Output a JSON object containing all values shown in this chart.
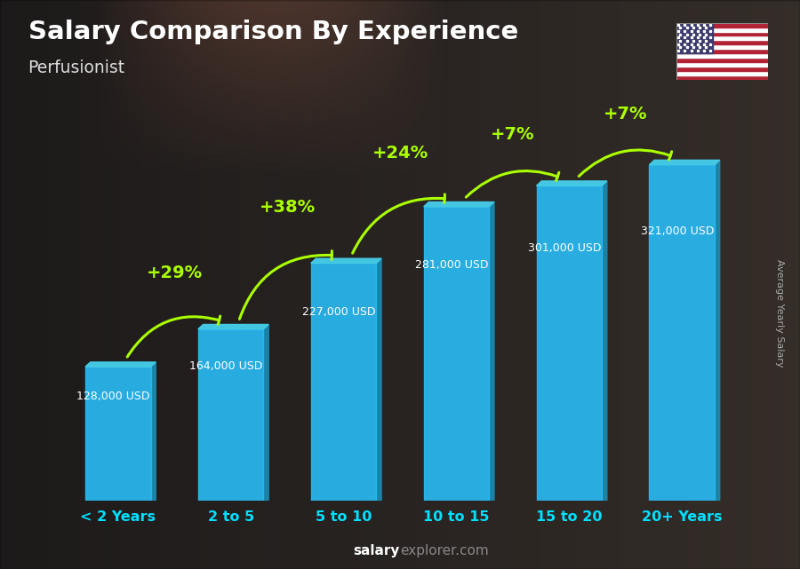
{
  "title": "Salary Comparison By Experience",
  "subtitle": "Perfusionist",
  "ylabel": "Average Yearly Salary",
  "watermark_salary": "salary",
  "watermark_explorer": "explorer.com",
  "categories": [
    "< 2 Years",
    "2 to 5",
    "5 to 10",
    "10 to 15",
    "15 to 20",
    "20+ Years"
  ],
  "values": [
    128000,
    164000,
    227000,
    281000,
    301000,
    321000
  ],
  "labels": [
    "128,000 USD",
    "164,000 USD",
    "227,000 USD",
    "281,000 USD",
    "301,000 USD",
    "321,000 USD"
  ],
  "pct_changes": [
    "+29%",
    "+38%",
    "+24%",
    "+7%",
    "+7%"
  ],
  "bar_face_color": "#29b8f0",
  "bar_side_color": "#1a8ab0",
  "bar_top_color": "#45cce8",
  "bg_overlay_color": "#2a3a4a",
  "title_color": "#ffffff",
  "subtitle_color": "#dddddd",
  "label_color": "#ffffff",
  "pct_color": "#aaff00",
  "xlabel_color": "#00e0ff",
  "watermark_color1": "#aaaaaa",
  "watermark_color2": "#888888",
  "ylabel_color": "#aaaaaa",
  "figsize": [
    9.0,
    6.41
  ],
  "dpi": 100
}
